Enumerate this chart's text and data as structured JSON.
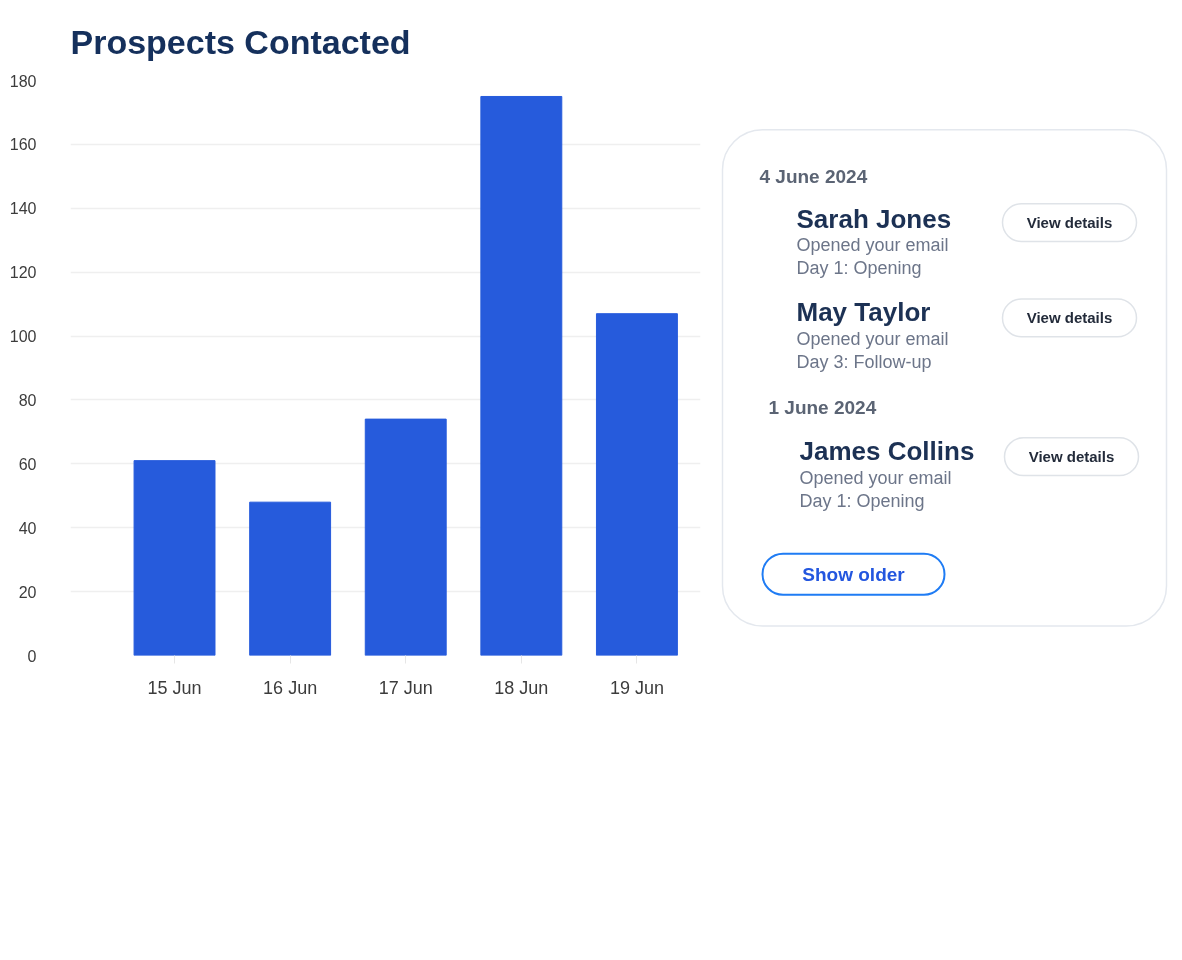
{
  "chart_data": [
    {
      "type": "bar",
      "title": "Prospects Contacted",
      "categories": [
        "15 Jun",
        "16 Jun",
        "17 Jun",
        "18 Jun",
        "19 Jun"
      ],
      "values": [
        61,
        48,
        74,
        175,
        107
      ],
      "color": "#265bdc",
      "ylim": [
        0,
        180
      ],
      "yticks": [
        0,
        20,
        40,
        60,
        80,
        100,
        120,
        140,
        160,
        180
      ],
      "grid": "y"
    },
    {
      "type": "other",
      "annotations": [
        "4 June 2024",
        "Sarah Jones",
        "Opened your email",
        "Day 1: Opening",
        "View details",
        "May Taylor",
        "Opened your email",
        "Day 3: Follow-up",
        "View details",
        "1 June 2024",
        "James Collins",
        "Opened your email",
        "Day 1: Opening",
        "View details",
        "Show older"
      ]
    }
  ]
}
